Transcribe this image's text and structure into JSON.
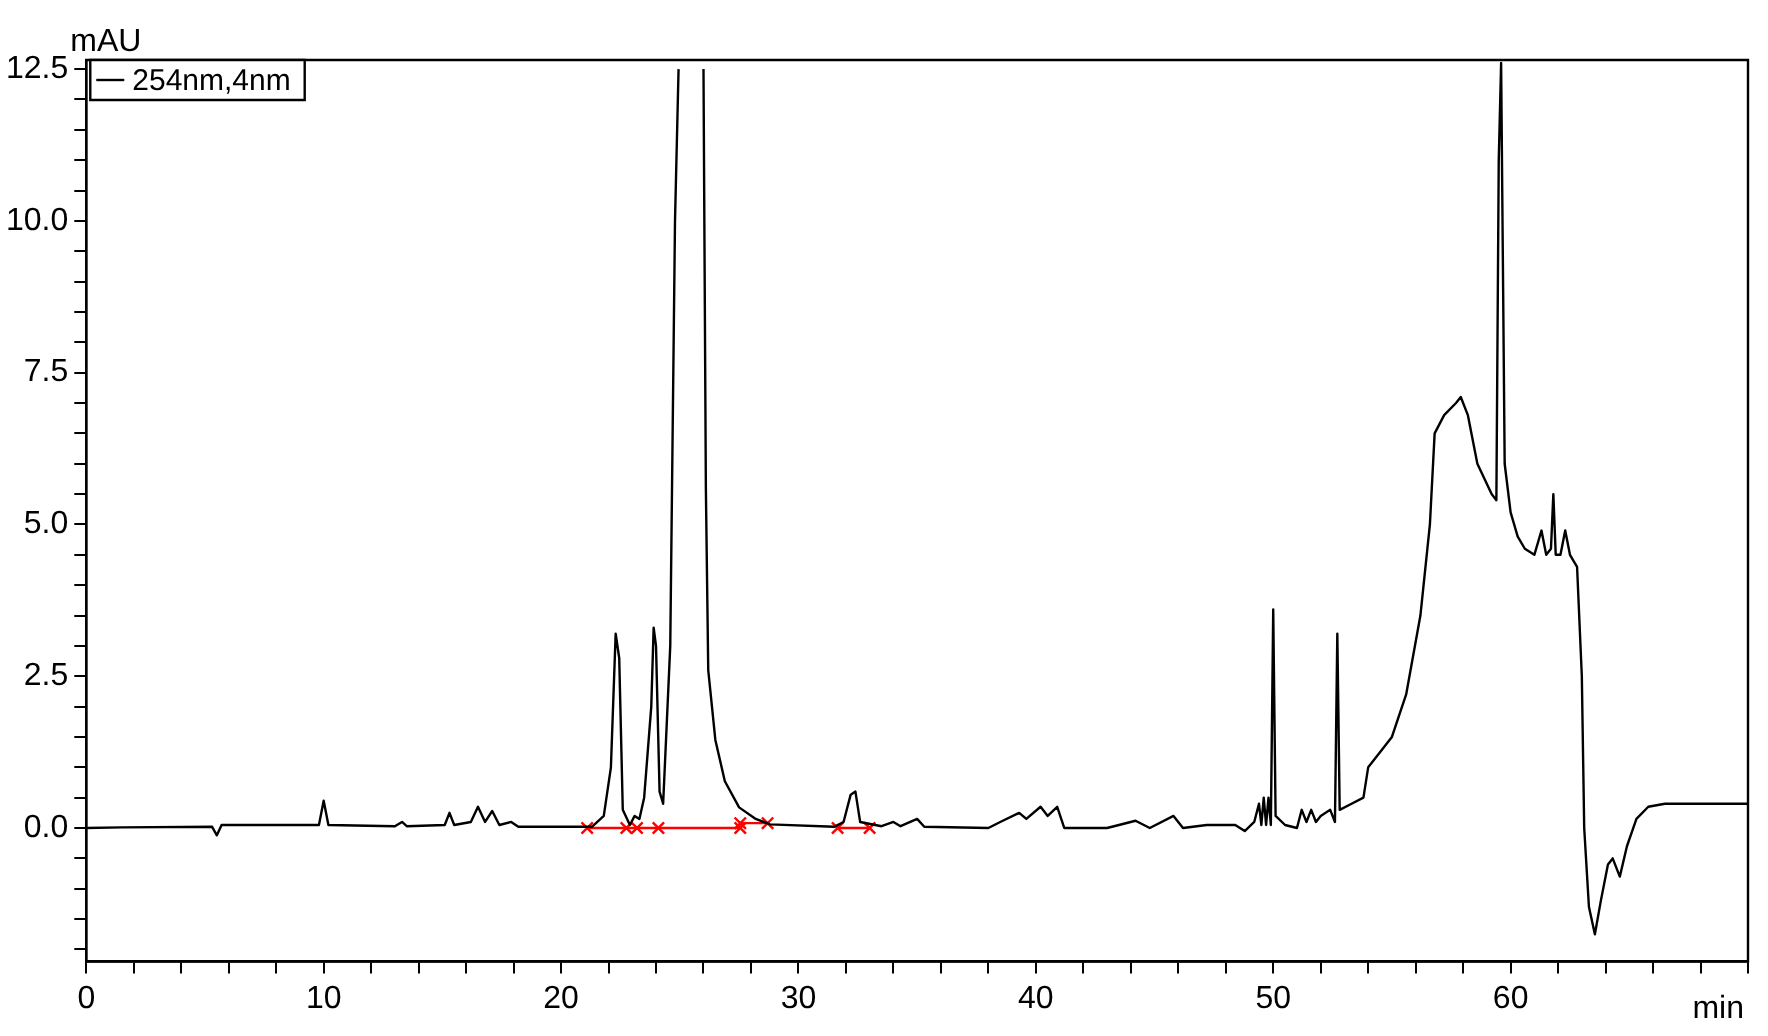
{
  "chart_data": {
    "type": "line",
    "xlabel": "min",
    "ylabel": "mAU",
    "legend": "top left",
    "grid": false,
    "marker": "none",
    "line_style": "solid",
    "xlim": [
      0,
      70
    ],
    "ylim": [
      -2.2,
      12.65
    ],
    "xticks": [
      0,
      {
        "value": 2,
        "label": null
      },
      {
        "value": 4,
        "label": null
      },
      {
        "value": 6,
        "label": null
      },
      {
        "value": 8,
        "label": null
      },
      10,
      {
        "value": 12,
        "label": null
      },
      {
        "value": 14,
        "label": null
      },
      {
        "value": 16,
        "label": null
      },
      {
        "value": 18,
        "label": null
      },
      20,
      {
        "value": 22,
        "label": null
      },
      {
        "value": 24,
        "label": null
      },
      {
        "value": 26,
        "label": null
      },
      {
        "value": 28,
        "label": null
      },
      30,
      {
        "value": 32,
        "label": null
      },
      {
        "value": 34,
        "label": null
      },
      {
        "value": 36,
        "label": null
      },
      {
        "value": 38,
        "label": null
      },
      40,
      {
        "value": 42,
        "label": null
      },
      {
        "value": 44,
        "label": null
      },
      {
        "value": 46,
        "label": null
      },
      {
        "value": 48,
        "label": null
      },
      50,
      {
        "value": 52,
        "label": null
      },
      {
        "value": 54,
        "label": null
      },
      {
        "value": 56,
        "label": null
      },
      {
        "value": 58,
        "label": null
      },
      60,
      {
        "value": 62,
        "label": null
      },
      {
        "value": 64,
        "label": null
      },
      {
        "value": 66,
        "label": null
      },
      {
        "value": 68,
        "label": null
      },
      {
        "value": 70,
        "label": null
      }
    ],
    "yticks": [
      {
        "value": -2,
        "label": null
      },
      {
        "value": -1.5,
        "label": null
      },
      {
        "value": -1,
        "label": null
      },
      {
        "value": -0.5,
        "label": null
      },
      {
        "value": 0,
        "label": "0.0"
      },
      {
        "value": 0.5,
        "label": null
      },
      {
        "value": 1,
        "label": null
      },
      {
        "value": 1.5,
        "label": null
      },
      {
        "value": 2,
        "label": null
      },
      2.5,
      {
        "value": 3,
        "label": null
      },
      {
        "value": 3.5,
        "label": null
      },
      {
        "value": 4,
        "label": null
      },
      {
        "value": 4.5,
        "label": null
      },
      {
        "value": 5,
        "label": "5.0"
      },
      {
        "value": 5.5,
        "label": null
      },
      {
        "value": 6,
        "label": null
      },
      {
        "value": 6.5,
        "label": null
      },
      {
        "value": 7,
        "label": null
      },
      7.5,
      {
        "value": 8,
        "label": null
      },
      {
        "value": 8.5,
        "label": null
      },
      {
        "value": 9,
        "label": null
      },
      {
        "value": 9.5,
        "label": null
      },
      {
        "value": 10,
        "label": "10.0"
      },
      {
        "value": 10.5,
        "label": null
      },
      {
        "value": 11,
        "label": null
      },
      {
        "value": 11.5,
        "label": null
      },
      {
        "value": 12,
        "label": null
      },
      12.5
    ],
    "series": [
      {
        "name": "254nm,4nm",
        "color": "#000000",
        "x": [
          0,
          1.5,
          5.3,
          5.5,
          5.7,
          9.8,
          10.0,
          10.2,
          13,
          13.3,
          13.5,
          15.1,
          15.3,
          15.5,
          16.2,
          16.5,
          16.8,
          17.1,
          17.4,
          17.9,
          18.2,
          21.3,
          21.8,
          22.1,
          22.3,
          22.45,
          22.6,
          22.9,
          23.1,
          23.3,
          23.5,
          23.8,
          23.9,
          24.0,
          24.15,
          24.3,
          24.6,
          24.8,
          24.95,
          25.5,
          26.0,
          26.1,
          26.2,
          26.5,
          26.9,
          27.5,
          28.2,
          28.8,
          31.5,
          31.9,
          32.2,
          32.4,
          32.6,
          33.5,
          34,
          34.3,
          35,
          35.3,
          38,
          38.5,
          39.3,
          39.6,
          40.2,
          40.5,
          40.9,
          41.2,
          43,
          43.5,
          44.2,
          44.8,
          45.8,
          46.2,
          47.2,
          48.4,
          48.8,
          49.2,
          49.4,
          49.5,
          49.6,
          49.7,
          49.8,
          49.9,
          50.0,
          50.1,
          50.5,
          51.0,
          51.2,
          51.4,
          51.6,
          51.8,
          52.0,
          52.4,
          52.6,
          52.7,
          52.8,
          53.3,
          53.8,
          54.0,
          55.0,
          55.6,
          56.2,
          56.6,
          56.8,
          57.2,
          57.7,
          57.9,
          58.2,
          58.6,
          59.2,
          59.4,
          59.5,
          59.6,
          59.75,
          60.0,
          60.3,
          60.6,
          61.0,
          61.3,
          61.5,
          61.7,
          61.8,
          61.9,
          62.1,
          62.3,
          62.5,
          62.8,
          63.0,
          63.1,
          63.3,
          63.55,
          63.8,
          64.1,
          64.3,
          64.6,
          64.9,
          65.3,
          65.8,
          66.5,
          70
        ],
        "values": [
          0,
          0.01,
          0.02,
          -0.12,
          0.05,
          0.05,
          0.45,
          0.05,
          0.03,
          0.1,
          0.03,
          0.05,
          0.25,
          0.05,
          0.1,
          0.35,
          0.1,
          0.28,
          0.05,
          0.1,
          0.02,
          0.02,
          0.2,
          1.0,
          3.2,
          2.8,
          0.3,
          0.05,
          0.2,
          0.15,
          0.5,
          2.0,
          3.3,
          3.0,
          0.6,
          0.4,
          3.0,
          10.0,
          12.5,
          null,
          12.5,
          5.6,
          2.6,
          1.45,
          0.77,
          0.34,
          0.15,
          0.06,
          0.02,
          0.1,
          0.55,
          0.6,
          0.1,
          0.03,
          0.1,
          0.03,
          0.15,
          0.02,
          0.0,
          0.1,
          0.25,
          0.15,
          0.35,
          0.2,
          0.35,
          0.0,
          0.0,
          0.05,
          0.12,
          0.0,
          0.2,
          0.0,
          0.05,
          0.05,
          -0.05,
          0.1,
          0.4,
          0.05,
          0.5,
          0.05,
          0.5,
          0.05,
          3.6,
          0.2,
          0.05,
          0.0,
          0.3,
          0.1,
          0.3,
          0.1,
          0.2,
          0.3,
          0.1,
          3.2,
          0.3,
          0.4,
          0.5,
          1.0,
          1.5,
          2.2,
          3.5,
          5.0,
          6.5,
          6.8,
          7.0,
          7.1,
          6.8,
          6.0,
          5.5,
          5.4,
          11.0,
          12.6,
          6.0,
          5.2,
          4.8,
          4.6,
          4.5,
          4.9,
          4.5,
          4.6,
          5.5,
          4.5,
          4.5,
          4.9,
          4.5,
          4.3,
          2.5,
          0.0,
          -1.3,
          -1.75,
          -1.2,
          -0.6,
          -0.5,
          -0.8,
          -0.3,
          0.15,
          0.35,
          0.4,
          0.4
        ]
      },
      {
        "color": "#ff0000",
        "marker": "cross",
        "x": [
          21.1,
          22.75,
          23.2,
          24.1,
          27.55,
          27.55,
          28.7,
          30,
          31.65,
          33.0
        ],
        "values": [
          0,
          0,
          0,
          0,
          0,
          0.08,
          0.08,
          null,
          0,
          0
        ]
      }
    ]
  }
}
